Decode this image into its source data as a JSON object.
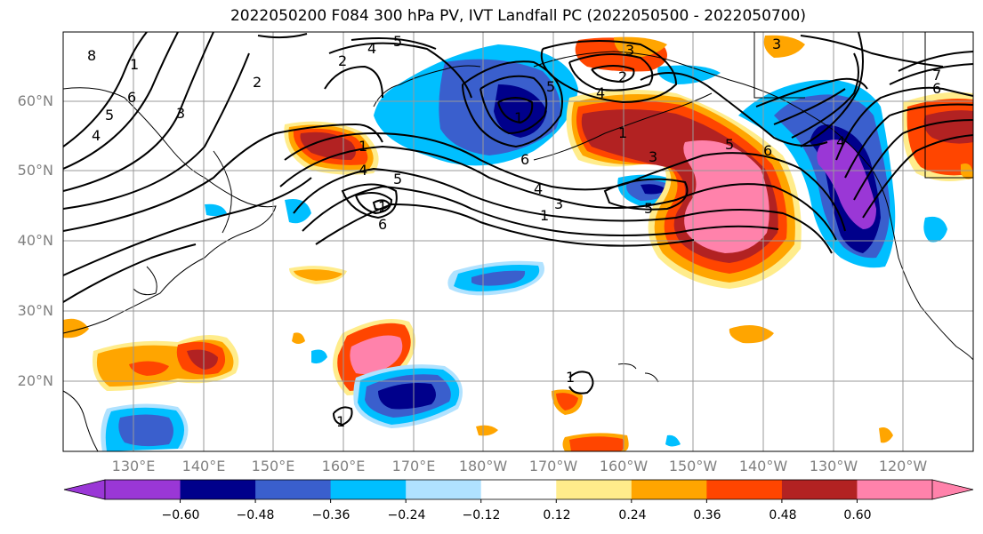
{
  "title": "2022050200 F084 300 hPa PV, IVT Landfall PC (2022050500 - 2022050700)",
  "lat_labels": [
    "60°N",
    "50°N",
    "40°N",
    "30°N",
    "20°N"
  ],
  "lon_labels": [
    "130°E",
    "140°E",
    "150°E",
    "160°E",
    "170°E",
    "180°W",
    "170°W",
    "160°W",
    "150°W",
    "140°W",
    "130°W",
    "120°W"
  ],
  "colorbar": {
    "colors": [
      "#9a37d6",
      "#00008b",
      "#3a5fcd",
      "#00bfff",
      "#b0e2ff",
      "#ffffff",
      "#ffec8b",
      "#ffa500",
      "#ff4500",
      "#b22222",
      "#ff82ab"
    ],
    "tick_labels": [
      "−0.60",
      "−0.48",
      "−0.36",
      "−0.24",
      "−0.12",
      "0.12",
      "0.24",
      "0.36",
      "0.48",
      "0.60"
    ]
  },
  "contour_labels": [
    "8",
    "1",
    "6",
    "5",
    "4",
    "3",
    "2",
    "5",
    "4",
    "2",
    "1",
    "4",
    "5",
    "6",
    "1",
    "4",
    "3",
    "1",
    "4",
    "5",
    "6",
    "1",
    "3",
    "2",
    "3",
    "1",
    "5",
    "6",
    "4",
    "5",
    "7",
    "6",
    "3",
    "1",
    "1"
  ]
}
